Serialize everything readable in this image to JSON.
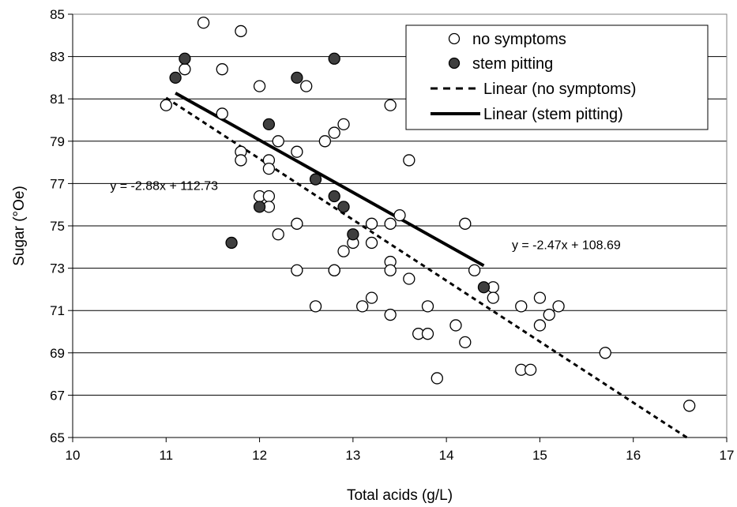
{
  "chart_data": {
    "type": "scatter",
    "xlabel": "Total acids (g/L)",
    "ylabel": "Sugar (°Oe)",
    "xlim": [
      10,
      17
    ],
    "ylim": [
      65,
      85
    ],
    "x_ticks": [
      10,
      11,
      12,
      13,
      14,
      15,
      16,
      17
    ],
    "y_ticks": [
      65,
      67,
      69,
      71,
      73,
      75,
      77,
      79,
      81,
      83,
      85
    ],
    "grid": "horizontal",
    "legend_position": "top-right",
    "series": [
      {
        "name": "no symptoms",
        "marker": "open-circle",
        "color": "#000000",
        "points": [
          [
            11.0,
            80.7
          ],
          [
            11.2,
            82.4
          ],
          [
            11.4,
            84.6
          ],
          [
            11.6,
            82.4
          ],
          [
            11.6,
            80.3
          ],
          [
            11.8,
            84.2
          ],
          [
            11.8,
            78.5
          ],
          [
            11.8,
            78.1
          ],
          [
            12.0,
            81.6
          ],
          [
            12.0,
            76.4
          ],
          [
            12.1,
            78.1
          ],
          [
            12.1,
            77.7
          ],
          [
            12.1,
            76.4
          ],
          [
            12.1,
            75.9
          ],
          [
            12.2,
            79.0
          ],
          [
            12.2,
            74.6
          ],
          [
            12.4,
            78.5
          ],
          [
            12.4,
            75.1
          ],
          [
            12.4,
            72.9
          ],
          [
            12.5,
            81.6
          ],
          [
            12.6,
            71.2
          ],
          [
            12.7,
            79.0
          ],
          [
            12.8,
            79.4
          ],
          [
            12.8,
            72.9
          ],
          [
            12.8,
            72.9
          ],
          [
            12.9,
            79.8
          ],
          [
            12.9,
            73.8
          ],
          [
            13.0,
            74.2
          ],
          [
            13.1,
            71.2
          ],
          [
            13.2,
            75.1
          ],
          [
            13.2,
            74.2
          ],
          [
            13.2,
            71.6
          ],
          [
            13.4,
            80.7
          ],
          [
            13.4,
            75.1
          ],
          [
            13.4,
            73.3
          ],
          [
            13.4,
            72.9
          ],
          [
            13.4,
            70.8
          ],
          [
            13.5,
            75.5
          ],
          [
            13.6,
            78.1
          ],
          [
            13.6,
            72.5
          ],
          [
            13.7,
            69.9
          ],
          [
            13.8,
            71.2
          ],
          [
            13.8,
            69.9
          ],
          [
            13.9,
            67.8
          ],
          [
            14.1,
            70.3
          ],
          [
            14.2,
            75.1
          ],
          [
            14.2,
            69.5
          ],
          [
            14.3,
            72.9
          ],
          [
            14.5,
            72.1
          ],
          [
            14.5,
            71.6
          ],
          [
            14.8,
            71.2
          ],
          [
            14.8,
            68.2
          ],
          [
            14.9,
            68.2
          ],
          [
            15.0,
            71.6
          ],
          [
            15.0,
            70.3
          ],
          [
            15.1,
            70.8
          ],
          [
            15.2,
            71.2
          ],
          [
            15.7,
            69.0
          ],
          [
            16.6,
            66.5
          ]
        ]
      },
      {
        "name": "stem pitting",
        "marker": "filled-circle",
        "color": "#3f3f3f",
        "points": [
          [
            11.1,
            82.0
          ],
          [
            11.2,
            82.9
          ],
          [
            11.7,
            74.2
          ],
          [
            12.0,
            75.9
          ],
          [
            12.1,
            79.8
          ],
          [
            12.4,
            82.0
          ],
          [
            12.6,
            77.2
          ],
          [
            12.8,
            82.9
          ],
          [
            12.8,
            76.4
          ],
          [
            12.9,
            75.9
          ],
          [
            13.0,
            74.6
          ],
          [
            14.4,
            72.1
          ]
        ]
      }
    ],
    "trendlines": [
      {
        "name": "Linear (no symptoms)",
        "style": "dashed",
        "slope": -2.88,
        "intercept": 112.73,
        "x_range": [
          11.0,
          16.6
        ],
        "equation": "y = -2.88x + 112.73"
      },
      {
        "name": "Linear (stem pitting)",
        "style": "solid",
        "slope": -2.47,
        "intercept": 108.69,
        "x_range": [
          11.1,
          14.4
        ],
        "equation": "y = -2.47x + 108.69"
      }
    ]
  }
}
